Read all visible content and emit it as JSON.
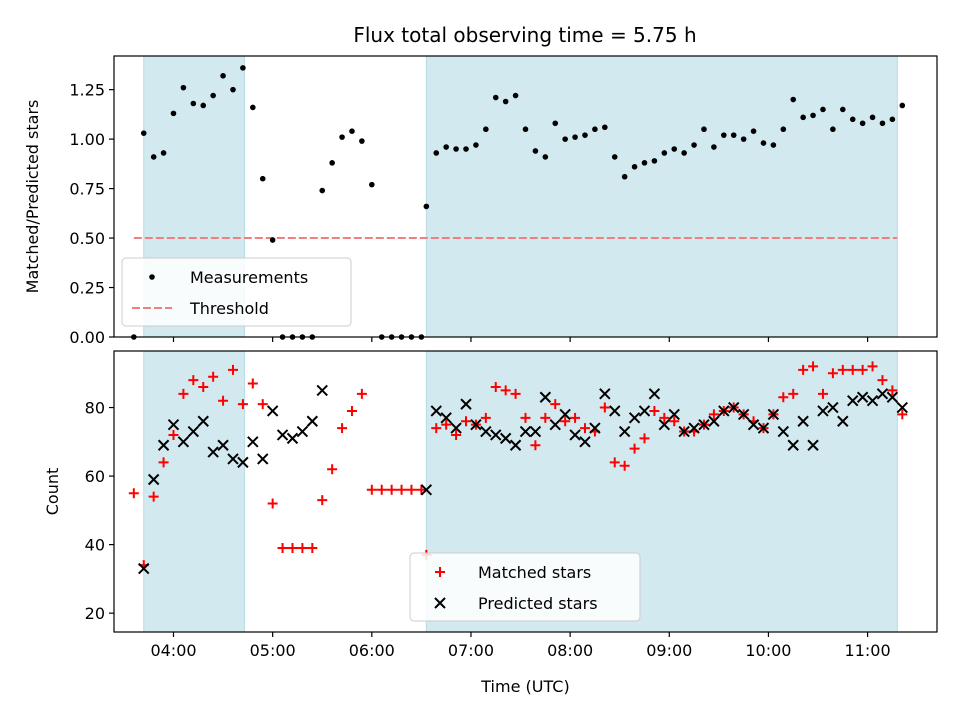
{
  "title": "Flux total observing time = 5.75 h",
  "colors": {
    "band": "#d3e9f0",
    "measurement": "#000000",
    "threshold": "#f08080",
    "matched": "#ff0000",
    "predicted": "#000000"
  },
  "chart_data": [
    {
      "type": "scatter",
      "ylabel": "Matched/Predicted stars",
      "ylim": [
        0,
        1.42
      ],
      "yticks": [
        0,
        0.25,
        0.5,
        0.75,
        1.0,
        1.25
      ],
      "ytick_labels": [
        "0.00",
        "0.25",
        "0.50",
        "0.75",
        "1.00",
        "1.25"
      ],
      "xlim": [
        "03:24",
        "11:42"
      ],
      "shaded_periods": [
        [
          "03:42",
          "04:43"
        ],
        [
          "06:33",
          "11:18"
        ]
      ],
      "legend": {
        "position": "lower-left",
        "entries": [
          "Measurements",
          "Threshold"
        ]
      },
      "threshold": {
        "name": "Threshold",
        "value": 0.5,
        "x_range": [
          "03:36",
          "11:18"
        ]
      },
      "series": [
        {
          "name": "Measurements",
          "marker": "dot",
          "x": [
            "03:36",
            "03:42",
            "03:48",
            "03:54",
            "04:00",
            "04:06",
            "04:12",
            "04:18",
            "04:24",
            "04:30",
            "04:36",
            "04:42",
            "04:48",
            "04:54",
            "05:00",
            "05:06",
            "05:12",
            "05:18",
            "05:24",
            "05:30",
            "05:36",
            "05:42",
            "05:48",
            "05:54",
            "06:00",
            "06:06",
            "06:12",
            "06:18",
            "06:24",
            "06:30",
            "06:33",
            "06:39",
            "06:45",
            "06:51",
            "06:57",
            "07:03",
            "07:09",
            "07:15",
            "07:21",
            "07:27",
            "07:33",
            "07:39",
            "07:45",
            "07:51",
            "07:57",
            "08:03",
            "08:09",
            "08:15",
            "08:21",
            "08:27",
            "08:33",
            "08:39",
            "08:45",
            "08:51",
            "08:57",
            "09:03",
            "09:09",
            "09:15",
            "09:21",
            "09:27",
            "09:33",
            "09:39",
            "09:45",
            "09:51",
            "09:57",
            "10:03",
            "10:09",
            "10:15",
            "10:21",
            "10:27",
            "10:33",
            "10:39",
            "10:45",
            "10:51",
            "10:57",
            "11:03",
            "11:09",
            "11:15",
            "11:21"
          ],
          "values": [
            0.0,
            1.03,
            0.91,
            0.93,
            1.13,
            1.26,
            1.18,
            1.17,
            1.22,
            1.32,
            1.25,
            1.36,
            1.16,
            0.8,
            0.49,
            0.0,
            0.0,
            0.0,
            0.0,
            0.74,
            0.88,
            1.01,
            1.04,
            0.99,
            0.77,
            0.0,
            0.0,
            0.0,
            0.0,
            0.0,
            0.66,
            0.93,
            0.96,
            0.95,
            0.95,
            0.97,
            1.05,
            1.21,
            1.19,
            1.22,
            1.05,
            0.94,
            0.91,
            1.08,
            1.0,
            1.01,
            1.02,
            1.05,
            1.06,
            0.91,
            0.81,
            0.86,
            0.88,
            0.89,
            0.93,
            0.95,
            0.93,
            0.97,
            1.05,
            0.96,
            1.02,
            1.02,
            1.0,
            1.04,
            0.98,
            0.97,
            1.05,
            1.2,
            1.11,
            1.12,
            1.15,
            1.05,
            1.15,
            1.1,
            1.08,
            1.11,
            1.08,
            1.1,
            1.17
          ]
        }
      ]
    },
    {
      "type": "scatter",
      "xlabel": "Time (UTC)",
      "ylabel": "Count",
      "ylim": [
        14.5,
        96.5
      ],
      "yticks": [
        20,
        40,
        60,
        80
      ],
      "ytick_labels": [
        "20",
        "40",
        "60",
        "80"
      ],
      "xlim": [
        "03:24",
        "11:42"
      ],
      "xticks": [
        "04:00",
        "05:00",
        "06:00",
        "07:00",
        "08:00",
        "09:00",
        "10:00",
        "11:00"
      ],
      "shaded_periods": [
        [
          "03:42",
          "04:43"
        ],
        [
          "06:33",
          "11:18"
        ]
      ],
      "legend": {
        "position": "lower-center",
        "entries": [
          "Matched stars",
          "Predicted stars"
        ]
      },
      "series": [
        {
          "name": "Matched stars",
          "marker": "plus",
          "x": [
            "03:36",
            "03:42",
            "03:48",
            "03:54",
            "04:00",
            "04:06",
            "04:12",
            "04:18",
            "04:24",
            "04:30",
            "04:36",
            "04:42",
            "04:48",
            "04:54",
            "05:00",
            "05:06",
            "05:12",
            "05:18",
            "05:24",
            "05:30",
            "05:36",
            "05:42",
            "05:48",
            "05:54",
            "06:00",
            "06:06",
            "06:12",
            "06:18",
            "06:24",
            "06:30",
            "06:33",
            "06:39",
            "06:45",
            "06:51",
            "06:57",
            "07:03",
            "07:09",
            "07:15",
            "07:21",
            "07:27",
            "07:33",
            "07:39",
            "07:45",
            "07:51",
            "07:57",
            "08:03",
            "08:09",
            "08:15",
            "08:21",
            "08:27",
            "08:33",
            "08:39",
            "08:45",
            "08:51",
            "08:57",
            "09:03",
            "09:09",
            "09:15",
            "09:21",
            "09:27",
            "09:33",
            "09:39",
            "09:45",
            "09:51",
            "09:57",
            "10:03",
            "10:09",
            "10:15",
            "10:21",
            "10:27",
            "10:33",
            "10:39",
            "10:45",
            "10:51",
            "10:57",
            "11:03",
            "11:09",
            "11:15",
            "11:21"
          ],
          "values": [
            55,
            34,
            54,
            64,
            72,
            84,
            88,
            86,
            89,
            82,
            91,
            81,
            87,
            81,
            52,
            39,
            39,
            39,
            39,
            53,
            62,
            74,
            79,
            84,
            56,
            56,
            56,
            56,
            56,
            56,
            37,
            74,
            75,
            72,
            76,
            75,
            77,
            86,
            85,
            84,
            77,
            69,
            77,
            81,
            76,
            77,
            74,
            73,
            80,
            64,
            63,
            68,
            71,
            79,
            77,
            76,
            73,
            73,
            75,
            78,
            79,
            80,
            78,
            76,
            74,
            78,
            83,
            84,
            91,
            92,
            84,
            90,
            91,
            91,
            91,
            92,
            88,
            85,
            78
          ]
        },
        {
          "name": "Predicted stars",
          "marker": "x",
          "x": [
            "03:42",
            "03:48",
            "03:54",
            "04:00",
            "04:06",
            "04:12",
            "04:18",
            "04:24",
            "04:30",
            "04:36",
            "04:42",
            "04:48",
            "04:54",
            "05:00",
            "05:06",
            "05:12",
            "05:18",
            "05:24",
            "05:30",
            "06:33",
            "06:39",
            "06:45",
            "06:51",
            "06:57",
            "07:03",
            "07:09",
            "07:15",
            "07:21",
            "07:27",
            "07:33",
            "07:39",
            "07:45",
            "07:51",
            "07:57",
            "08:03",
            "08:09",
            "08:15",
            "08:21",
            "08:27",
            "08:33",
            "08:39",
            "08:45",
            "08:51",
            "08:57",
            "09:03",
            "09:09",
            "09:15",
            "09:21",
            "09:27",
            "09:33",
            "09:39",
            "09:45",
            "09:51",
            "09:57",
            "10:03",
            "10:09",
            "10:15",
            "10:21",
            "10:27",
            "10:33",
            "10:39",
            "10:45",
            "10:51",
            "10:57",
            "11:03",
            "11:09",
            "11:15",
            "11:21"
          ],
          "values": [
            33,
            59,
            69,
            75,
            70,
            73,
            76,
            67,
            69,
            65,
            64,
            70,
            65,
            79,
            72,
            71,
            73,
            76,
            85,
            56,
            79,
            77,
            74,
            81,
            75,
            73,
            72,
            71,
            69,
            73,
            73,
            83,
            75,
            78,
            72,
            70,
            74,
            84,
            79,
            73,
            77,
            79,
            84,
            75,
            78,
            73,
            74,
            75,
            76,
            79,
            80,
            78,
            75,
            74,
            78,
            73,
            69,
            76,
            69,
            79,
            80,
            76,
            82,
            83,
            82,
            84,
            83,
            80
          ]
        }
      ]
    }
  ]
}
